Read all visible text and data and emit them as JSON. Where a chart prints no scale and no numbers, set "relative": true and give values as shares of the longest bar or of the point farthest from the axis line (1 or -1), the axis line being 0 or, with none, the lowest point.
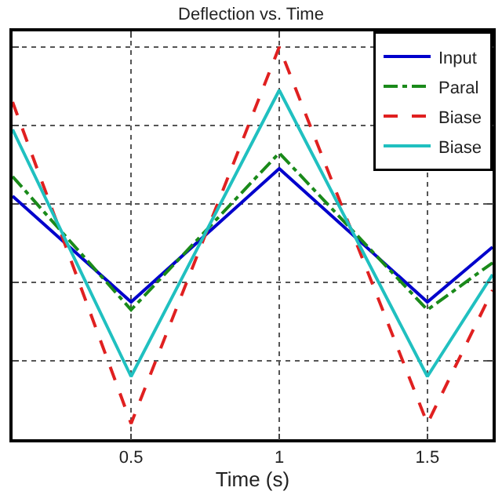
{
  "chart_data": {
    "type": "line",
    "title": "Deflection vs. Time",
    "xlabel": "Time (s)",
    "relative": true,
    "x": [
      0.1,
      0.5,
      1,
      1.5,
      1.72
    ],
    "xlim": [
      0.1,
      1.72
    ],
    "xticks": [
      0.5,
      1,
      1.5
    ],
    "series": [
      {
        "name": "Input",
        "color": "#0000cc",
        "values": [
          0.62,
          0.35,
          0.69,
          0.35,
          0.49
        ],
        "line_style": "solid"
      },
      {
        "name": "Paral",
        "color": "#1a8a1a",
        "values": [
          0.67,
          0.33,
          0.73,
          0.33,
          0.45
        ],
        "line_style": "dashdot"
      },
      {
        "name": "Biase",
        "color": "#e02020",
        "values": [
          0.86,
          0.04,
          1,
          0.04,
          0.38
        ],
        "line_style": "dashed"
      },
      {
        "name": "Biase",
        "color": "#20c0c0",
        "values": [
          0.79,
          0.16,
          0.89,
          0.16,
          0.42
        ],
        "line_style": "solid"
      }
    ],
    "grid": true,
    "legend": "top right",
    "tick_labels": "x",
    "marker": "none"
  }
}
